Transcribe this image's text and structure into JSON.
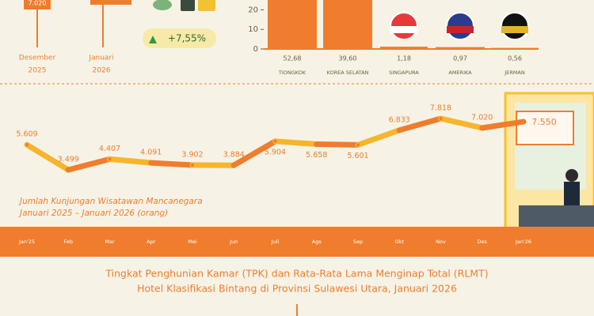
{
  "summary": {
    "prev_value": "7.020",
    "prev_month": "Desember",
    "prev_year": "2025",
    "cur_month": "Januari",
    "cur_year": "2026",
    "change": "+7,55%"
  },
  "chart_data": [
    {
      "type": "bar",
      "categories": [
        "TIONGKOK",
        "KOREA SELATAN",
        "SINGAPURA",
        "AMERIKA",
        "JERMAN"
      ],
      "values": [
        52.68,
        39.6,
        1.18,
        0.97,
        0.56
      ],
      "value_labels": [
        "52,68",
        "39,60",
        "1,18",
        "0,97",
        "0,56"
      ],
      "color": "#ef7d2d",
      "ylim": [
        0,
        25
      ],
      "yticks": [
        0,
        10,
        20
      ]
    },
    {
      "type": "line",
      "title": "Jumlah Kunjungan Wisatawan Mancanegara",
      "subtitle": "Januari 2025 – Januari 2026 (orang)",
      "categories": [
        "Jan'25",
        "Feb",
        "Mar",
        "Apr",
        "Mei",
        "Jun",
        "Juli",
        "Ags",
        "Sep",
        "Okt",
        "Nov",
        "Des",
        "Jan'26"
      ],
      "values": [
        5609,
        3499,
        4407,
        4091,
        3902,
        3884,
        5904,
        5658,
        5601,
        6833,
        7818,
        7020,
        7550
      ],
      "value_labels": [
        "5.609",
        "3.499",
        "4.407",
        "4.091",
        "3.902",
        "3.884",
        "5.904",
        "5.658",
        "5.601",
        "6.833",
        "7.818",
        "7.020",
        "7.550"
      ],
      "colors": [
        "#f7b52c",
        "#ef7d2d"
      ]
    }
  ],
  "footer": {
    "line1": "Tingkat Penghunian Kamar (TPK) dan Rata-Rata Lama Menginap Total (RLMT)",
    "line2": "Hotel Klasifikasi Bintang di Provinsi Sulawesi Utara, Januari 2026"
  }
}
